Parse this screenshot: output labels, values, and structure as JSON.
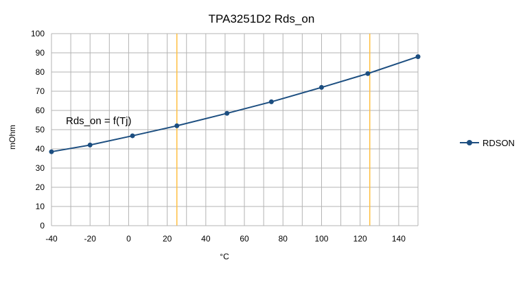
{
  "chart_data": {
    "type": "line",
    "title": "TPA3251D2 Rds_on",
    "xlabel": "°C",
    "ylabel": "mOhm",
    "xlim": [
      -40,
      150
    ],
    "ylim": [
      0,
      100
    ],
    "x_ticks": [
      -40,
      -20,
      0,
      20,
      40,
      60,
      80,
      100,
      120,
      140
    ],
    "y_ticks": [
      0,
      10,
      20,
      30,
      40,
      50,
      60,
      70,
      80,
      90,
      100
    ],
    "x_minor_step": 10,
    "grid": true,
    "annotation": "Rds_on = f(Tj)",
    "reference_lines_x": [
      25,
      125
    ],
    "reference_line_color": "#ffbf40",
    "legend_position": "right",
    "series": [
      {
        "name": "RDSON",
        "color": "#1c4e80",
        "x": [
          -40,
          -20,
          2,
          25,
          51,
          74,
          100,
          124,
          150
        ],
        "y": [
          38.5,
          42,
          46.8,
          52,
          58.5,
          64.5,
          72,
          79.2,
          88
        ]
      }
    ]
  }
}
